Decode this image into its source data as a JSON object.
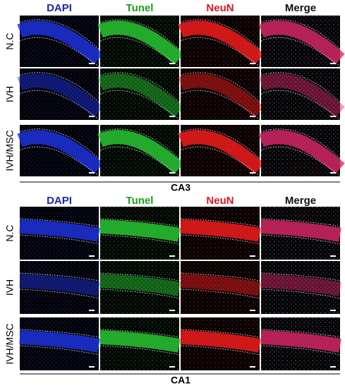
{
  "panels": [
    {
      "columns": [
        "DAPI",
        "Tunel",
        "NeuN",
        "Merge"
      ],
      "rows": [
        "N.C",
        "IVH",
        "IVH/MSC"
      ],
      "region": "CA3"
    },
    {
      "columns": [
        "DAPI",
        "Tunel",
        "NeuN",
        "Merge"
      ],
      "rows": [
        "N.C",
        "IVH",
        "IVH/MSC"
      ],
      "region": "CA1"
    }
  ]
}
